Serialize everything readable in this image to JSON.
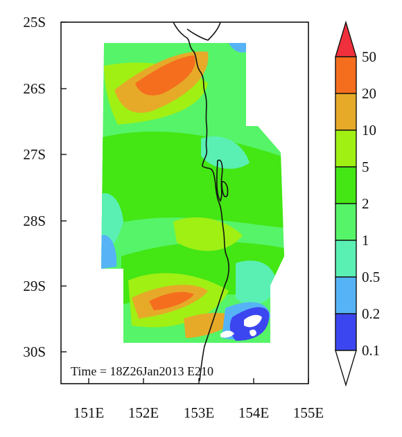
{
  "map": {
    "latitude_ticks": [
      "25S",
      "26S",
      "27S",
      "28S",
      "29S",
      "30S"
    ],
    "longitude_ticks": [
      "151E",
      "152E",
      "153E",
      "154E",
      "155E"
    ],
    "time_label": "Time = 18Z26Jan2013 E210"
  },
  "colorbar": {
    "levels": [
      "50",
      "20",
      "10",
      "5",
      "2",
      "1",
      "0.5",
      "0.2",
      "0.1"
    ],
    "colors": [
      "#f0303c",
      "#f56e1e",
      "#e6aa28",
      "#a0f014",
      "#44e614",
      "#56f468",
      "#5af0b4",
      "#56b4f6",
      "#3c46f0",
      "#ffffff"
    ]
  },
  "field_colors": {
    "background": "#56f468",
    "base": "#44e614",
    "light": "#a0f014",
    "cyan": "#5af0b4",
    "blue": "#56b4f6",
    "deepblue": "#3c46f0",
    "orange": "#e6aa28",
    "darkorange": "#f56e1e"
  }
}
